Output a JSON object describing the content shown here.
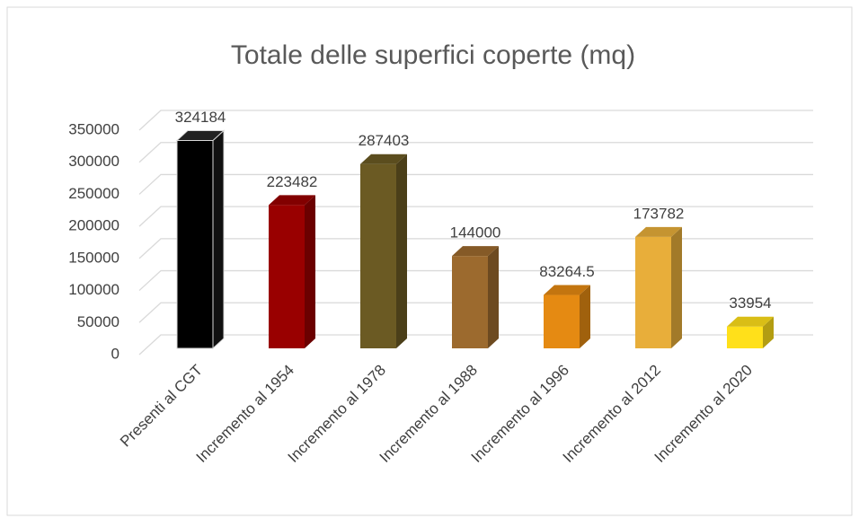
{
  "chart_data": {
    "type": "bar3d",
    "title": "Totale delle superfici coperte (mq)",
    "categories": [
      "Presenti al CGT",
      "Incremento al 1954",
      "Incremento al 1978",
      "Incremento al 1988",
      "Incremento al 1996",
      "Incremento al 2012",
      "Incremento al 2020"
    ],
    "values": [
      324184,
      223482,
      287403,
      144000,
      83264.5,
      173782,
      33954
    ],
    "colors": [
      "#000000",
      "#990000",
      "#6b5a23",
      "#9c6a2e",
      "#e58a12",
      "#e8ae3a",
      "#ffe01a"
    ],
    "ylim": [
      0,
      350000
    ],
    "yticks": [
      0,
      50000,
      100000,
      150000,
      200000,
      250000,
      300000,
      350000
    ],
    "grid": true
  }
}
